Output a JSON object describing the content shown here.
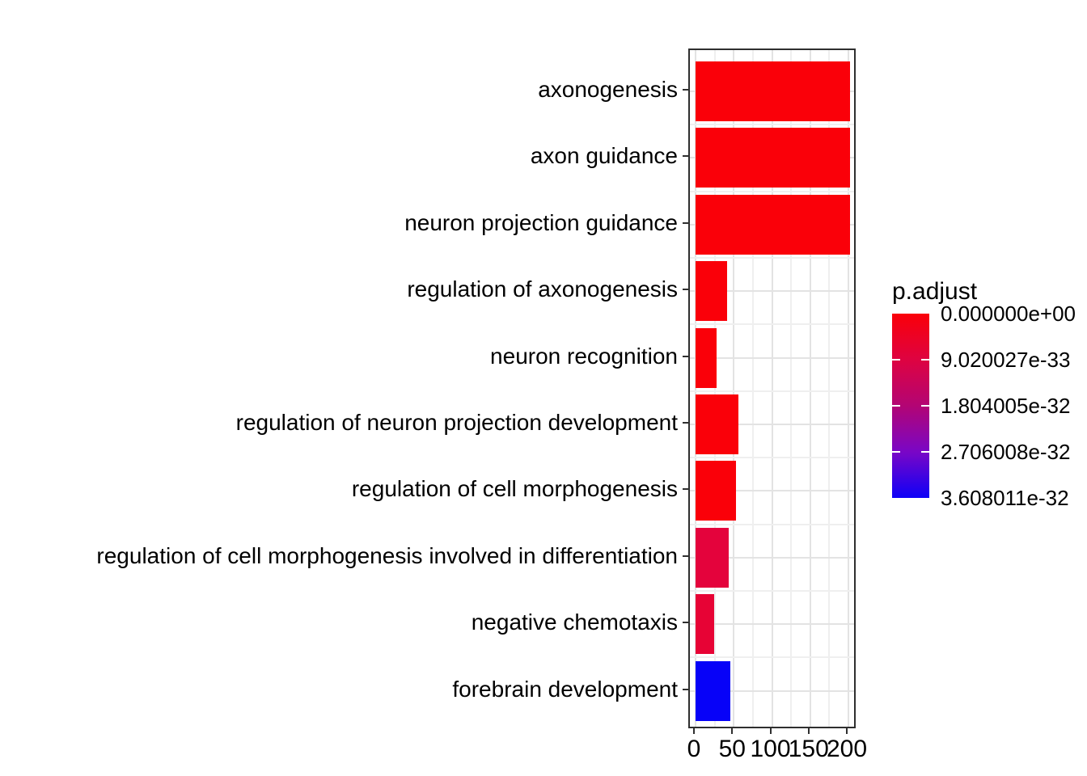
{
  "figure": {
    "background": "#ffffff",
    "panel_border_color": "#2f2f2f",
    "grid_major_color": "#e3e3e3",
    "grid_minor_color": "#efefef"
  },
  "legend": {
    "title": "p.adjust",
    "tick_labels": [
      "0.000000e+00",
      "9.020027e-33",
      "1.804005e-32",
      "2.706008e-32",
      "3.608011e-32"
    ],
    "gradient_stops": [
      "#FA0009",
      "#DE0341",
      "#B30574",
      "#7A06C6",
      "#0E01F7"
    ]
  },
  "x_axis": {
    "tick_labels": [
      "0",
      "50",
      "100",
      "150",
      "200"
    ],
    "tick_values": [
      0,
      50,
      100,
      150,
      200
    ],
    "minor_tick_values": [
      25,
      75,
      125,
      175
    ]
  },
  "chart_data": {
    "type": "bar",
    "orientation": "horizontal",
    "title": "",
    "xlabel": "",
    "ylabel": "",
    "categories": [
      "axonogenesis",
      "axon guidance",
      "neuron projection guidance",
      "regulation of axonogenesis",
      "neuron recognition",
      "regulation of neuron projection development",
      "regulation of cell morphogenesis",
      "regulation of cell morphogenesis involved in differentiation",
      "negative chemotaxis",
      "forebrain development"
    ],
    "values": [
      202,
      202,
      202,
      41,
      27,
      56,
      53,
      43,
      24,
      46
    ],
    "bar_colors": [
      "#FA0009",
      "#FA0009",
      "#FA0009",
      "#FA0009",
      "#FA0009",
      "#FA0009",
      "#FA0009",
      "#E4033C",
      "#E70335",
      "#0702F8"
    ],
    "xlim": [
      0,
      212
    ],
    "x_ticks": [
      0,
      50,
      100,
      150,
      200
    ],
    "grid": true,
    "legend_position": "right",
    "legend_title": "p.adjust",
    "colorbar_range_labels": [
      "0.000000e+00",
      "3.608011e-32"
    ]
  }
}
